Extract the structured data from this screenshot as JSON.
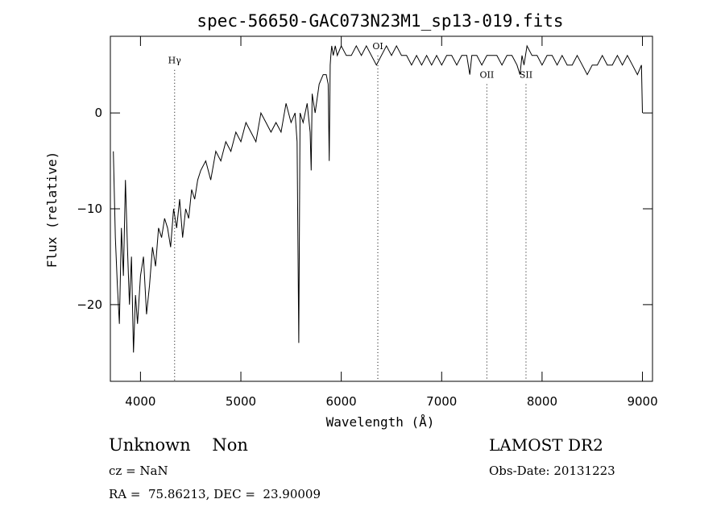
{
  "chart_data": {
    "type": "line",
    "title": "spec-56650-GAC073N23M1_sp13-019.fits",
    "xlabel": "Wavelength (Å)",
    "ylabel": "Flux (relative)",
    "xlim": [
      3700,
      9100
    ],
    "ylim": [
      -28,
      8
    ],
    "xticks": [
      4000,
      5000,
      6000,
      7000,
      8000,
      9000
    ],
    "yticks": [
      0,
      -10,
      -20
    ],
    "grid": false,
    "legend": "none",
    "line_color": "#000000",
    "series": [
      {
        "x": [
          3730,
          3750,
          3770,
          3790,
          3810,
          3830,
          3850,
          3870,
          3890,
          3910,
          3930,
          3950,
          3970,
          4000,
          4030,
          4060,
          4090,
          4120,
          4150,
          4180,
          4210,
          4240,
          4270,
          4300,
          4330,
          4360,
          4390,
          4420,
          4450,
          4480,
          4510,
          4540,
          4570,
          4600,
          4650,
          4700,
          4750,
          4800,
          4850,
          4900,
          4950,
          5000,
          5050,
          5100,
          5150,
          5200,
          5250,
          5300,
          5350,
          5400,
          5450,
          5500,
          5540,
          5560,
          5577,
          5590,
          5620,
          5660,
          5690,
          5700,
          5710,
          5740,
          5780,
          5820,
          5850,
          5870,
          5880,
          5890,
          5896,
          5905,
          5920,
          5940,
          5960,
          6000,
          6050,
          6100,
          6150,
          6200,
          6250,
          6300,
          6350,
          6400,
          6450,
          6500,
          6550,
          6600,
          6650,
          6700,
          6750,
          6800,
          6850,
          6900,
          6950,
          7000,
          7050,
          7100,
          7150,
          7200,
          7250,
          7280,
          7300,
          7350,
          7400,
          7450,
          7500,
          7550,
          7600,
          7650,
          7700,
          7750,
          7780,
          7800,
          7820,
          7850,
          7900,
          7950,
          8000,
          8050,
          8100,
          8150,
          8200,
          8250,
          8300,
          8350,
          8400,
          8450,
          8500,
          8550,
          8600,
          8650,
          8700,
          8750,
          8800,
          8850,
          8900,
          8950,
          8990,
          9000
        ],
        "values": [
          -4,
          -13,
          -18,
          -22,
          -12,
          -17,
          -7,
          -14,
          -20,
          -15,
          -25,
          -19,
          -22,
          -17,
          -15,
          -21,
          -18,
          -14,
          -16,
          -12,
          -13,
          -11,
          -12,
          -14,
          -10,
          -12,
          -9,
          -13,
          -10,
          -11,
          -8,
          -9,
          -7,
          -6,
          -5,
          -7,
          -4,
          -5,
          -3,
          -4,
          -2,
          -3,
          -1,
          -2,
          -3,
          0,
          -1,
          -2,
          -1,
          -2,
          1,
          -1,
          0,
          -3,
          -24,
          0,
          -1,
          1,
          -2,
          -6,
          2,
          0,
          3,
          4,
          4,
          3,
          -5,
          5,
          6,
          7,
          6,
          7,
          6,
          7,
          6,
          6,
          7,
          6,
          7,
          6,
          5,
          6,
          7,
          6,
          7,
          6,
          6,
          5,
          6,
          5,
          6,
          5,
          6,
          5,
          6,
          6,
          5,
          6,
          6,
          4,
          6,
          6,
          5,
          6,
          6,
          6,
          5,
          6,
          6,
          5,
          4,
          6,
          5,
          7,
          6,
          6,
          5,
          6,
          6,
          5,
          6,
          5,
          5,
          6,
          5,
          4,
          5,
          5,
          6,
          5,
          5,
          6,
          5,
          6,
          5,
          4,
          5,
          0
        ]
      }
    ],
    "spectral_lines": [
      {
        "label": "Hγ",
        "x": 4340,
        "label_y": 5.5
      },
      {
        "label": "OI",
        "x": 6364,
        "label_y": 7.0
      },
      {
        "label": "OII",
        "x": 7450,
        "label_y": 4.0
      },
      {
        "label": "SII",
        "x": 7840,
        "label_y": 4.0
      }
    ]
  },
  "footer": {
    "object_type": "Unknown    Non",
    "survey": "LAMOST DR2",
    "cz": "cz = NaN",
    "obs_date": "Obs-Date: 20131223",
    "coords": "RA =  75.86213, DEC =  23.90009"
  }
}
